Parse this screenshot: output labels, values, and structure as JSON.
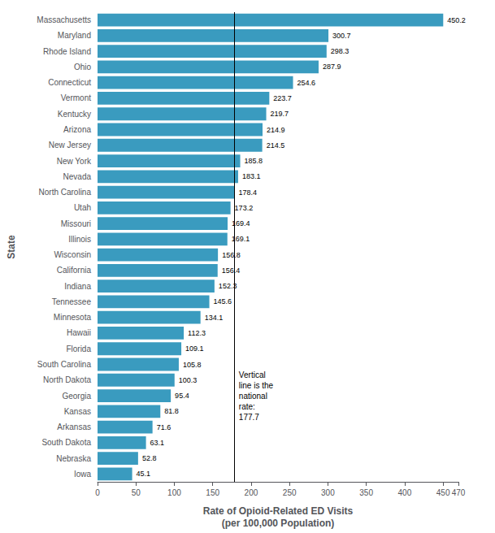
{
  "chart_data": {
    "type": "bar",
    "orientation": "horizontal",
    "categories": [
      "Massachusetts",
      "Maryland",
      "Rhode Island",
      "Ohio",
      "Connecticut",
      "Vermont",
      "Kentucky",
      "Arizona",
      "New Jersey",
      "New York",
      "Nevada",
      "North Carolina",
      "Utah",
      "Missouri",
      "Illinois",
      "Wisconsin",
      "California",
      "Indiana",
      "Tennessee",
      "Minnesota",
      "Hawaii",
      "Florida",
      "South Carolina",
      "North Dakota",
      "Georgia",
      "Kansas",
      "Arkansas",
      "South Dakota",
      "Nebraska",
      "Iowa"
    ],
    "values": [
      450.2,
      300.7,
      298.3,
      287.9,
      254.6,
      223.7,
      219.7,
      214.9,
      214.5,
      185.8,
      183.1,
      178.4,
      173.2,
      169.4,
      169.1,
      156.8,
      156.4,
      152.3,
      145.6,
      134.1,
      112.3,
      109.1,
      105.8,
      100.3,
      95.4,
      81.8,
      71.6,
      63.1,
      52.8,
      45.1
    ],
    "color": "#3a9bbf",
    "data_labels": true,
    "grid": false,
    "xlabel": "Rate of Opioid-Related ED Visits\n(per 100,000 Population)",
    "ylabel": "State",
    "xlim": [
      0,
      470
    ],
    "xticks": [
      0,
      50,
      100,
      150,
      200,
      250,
      300,
      350,
      400,
      450
    ],
    "national_rate": 177.7,
    "annotations": [
      "Vertical\nline is the\nnational\nrate:\n177.7"
    ]
  }
}
